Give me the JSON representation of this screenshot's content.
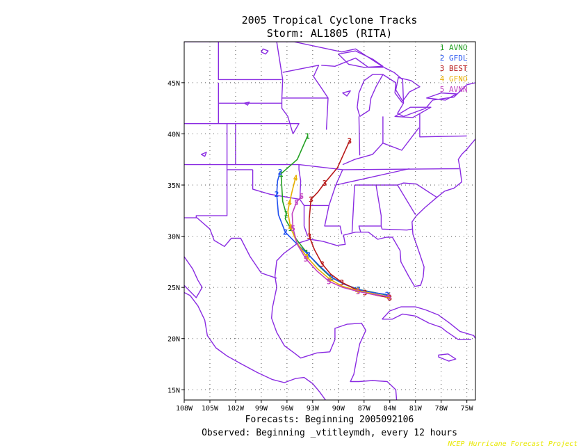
{
  "chart_data": {
    "type": "line",
    "title": "2005 Tropical Cyclone Tracks",
    "subtitle": "Storm: AL1805 (RITA)",
    "footer_line1": "Forecasts: Beginning 2005092106",
    "footer_line2": "Observed: Beginning _vtitleymdh, every 12 hours",
    "credit": "NCEP Hurricane Forecast Project",
    "xlim": [
      -108,
      -74
    ],
    "ylim": [
      14,
      49
    ],
    "x_ticks": [
      {
        "v": -108,
        "label": "108W"
      },
      {
        "v": -105,
        "label": "105W"
      },
      {
        "v": -102,
        "label": "102W"
      },
      {
        "v": -99,
        "label": "99W"
      },
      {
        "v": -96,
        "label": "96W"
      },
      {
        "v": -93,
        "label": "93W"
      },
      {
        "v": -90,
        "label": "90W"
      },
      {
        "v": -87,
        "label": "87W"
      },
      {
        "v": -84,
        "label": "84W"
      },
      {
        "v": -81,
        "label": "81W"
      },
      {
        "v": -78,
        "label": "78W"
      },
      {
        "v": -75,
        "label": "75W"
      }
    ],
    "y_ticks": [
      {
        "v": 15,
        "label": "15N"
      },
      {
        "v": 20,
        "label": "20N"
      },
      {
        "v": 25,
        "label": "25N"
      },
      {
        "v": 30,
        "label": "30N"
      },
      {
        "v": 35,
        "label": "35N"
      },
      {
        "v": 40,
        "label": "40N"
      },
      {
        "v": 45,
        "label": "45N"
      }
    ],
    "grid": true,
    "legend_position": "top-right",
    "series": [
      {
        "name": "AVNO",
        "marker": "1",
        "color": "#22a022",
        "x": [
          -84.1,
          -85.8,
          -87.6,
          -89.3,
          -90.9,
          -92.3,
          -93.7,
          -94.9,
          -95.6,
          -96.2,
          -96.1,
          -96.5,
          -96.7,
          -94.8,
          -93.6
        ],
        "y": [
          24.2,
          24.5,
          24.8,
          25.3,
          26.0,
          27.1,
          28.4,
          29.7,
          30.8,
          31.7,
          32.2,
          33.4,
          36.1,
          37.5,
          39.8
        ]
      },
      {
        "name": "GFDL",
        "marker": "2",
        "color": "#2050f0",
        "x": [
          -84.3,
          -86.0,
          -87.7,
          -89.3,
          -90.8,
          -92.2,
          -93.5,
          -94.9,
          -96.2,
          -97.0,
          -97.2,
          -97.1,
          -96.8
        ],
        "y": [
          24.3,
          24.5,
          24.8,
          25.3,
          26.0,
          27.1,
          28.2,
          29.3,
          30.4,
          32.1,
          34.1,
          35.4,
          36.3
        ]
      },
      {
        "name": "BEST",
        "marker": "3",
        "color": "#b81818",
        "x": [
          -84.0,
          -85.4,
          -86.9,
          -88.2,
          -89.6,
          -90.9,
          -91.9,
          -92.8,
          -93.4,
          -93.4,
          -93.2,
          -92.4,
          -91.6,
          -90.1,
          -88.7
        ],
        "y": [
          24.0,
          24.2,
          24.5,
          24.9,
          25.5,
          26.3,
          27.3,
          28.7,
          30.0,
          31.7,
          33.6,
          34.3,
          35.2,
          36.7,
          39.3
        ]
      },
      {
        "name": "GFNO",
        "marker": "4",
        "color": "#e8b000",
        "x": [
          -84.2,
          -86.0,
          -87.8,
          -89.5,
          -91.0,
          -92.4,
          -93.7,
          -94.8,
          -95.6,
          -95.9,
          -95.7,
          -95.4,
          -95.0
        ],
        "y": [
          24.1,
          24.4,
          24.7,
          25.1,
          25.8,
          26.8,
          28.0,
          29.3,
          30.9,
          32.4,
          33.3,
          34.4,
          35.7
        ]
      },
      {
        "name": "AVNN",
        "marker": "5",
        "color": "#c040c0",
        "x": [
          -84.1,
          -85.9,
          -87.7,
          -89.5,
          -91.1,
          -92.5,
          -93.8,
          -94.8,
          -95.3,
          -95.4,
          -94.9,
          -94.3
        ],
        "y": [
          24.1,
          24.3,
          24.6,
          25.0,
          25.6,
          26.6,
          27.8,
          29.2,
          30.8,
          32.2,
          33.3,
          33.9
        ]
      }
    ]
  },
  "colors": {
    "coast": "#8a2be2",
    "frame": "#000000",
    "grid": "#555555",
    "credit": "#e8e800"
  }
}
